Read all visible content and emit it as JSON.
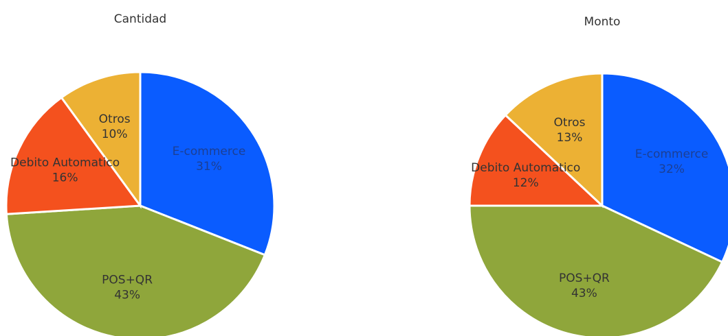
{
  "chart_data": [
    {
      "type": "pie",
      "title": "Cantidad",
      "categories": [
        "E-commerce",
        "POS+QR",
        "Debito Automatico",
        "Otros"
      ],
      "values": [
        31,
        43,
        16,
        10
      ],
      "value_labels": [
        "31%",
        "43%",
        "16%",
        "10%"
      ],
      "colors": [
        "#0a5cff",
        "#8fa63b",
        "#f4511e",
        "#ecb134"
      ]
    },
    {
      "type": "pie",
      "title": "Monto",
      "categories": [
        "E-commerce",
        "POS+QR",
        "Debito Automatico",
        "Otros"
      ],
      "values": [
        32,
        43,
        12,
        13
      ],
      "value_labels": [
        "32%",
        "43%",
        "12%",
        "13%"
      ],
      "colors": [
        "#0a5cff",
        "#8fa63b",
        "#f4511e",
        "#ecb134"
      ]
    }
  ]
}
